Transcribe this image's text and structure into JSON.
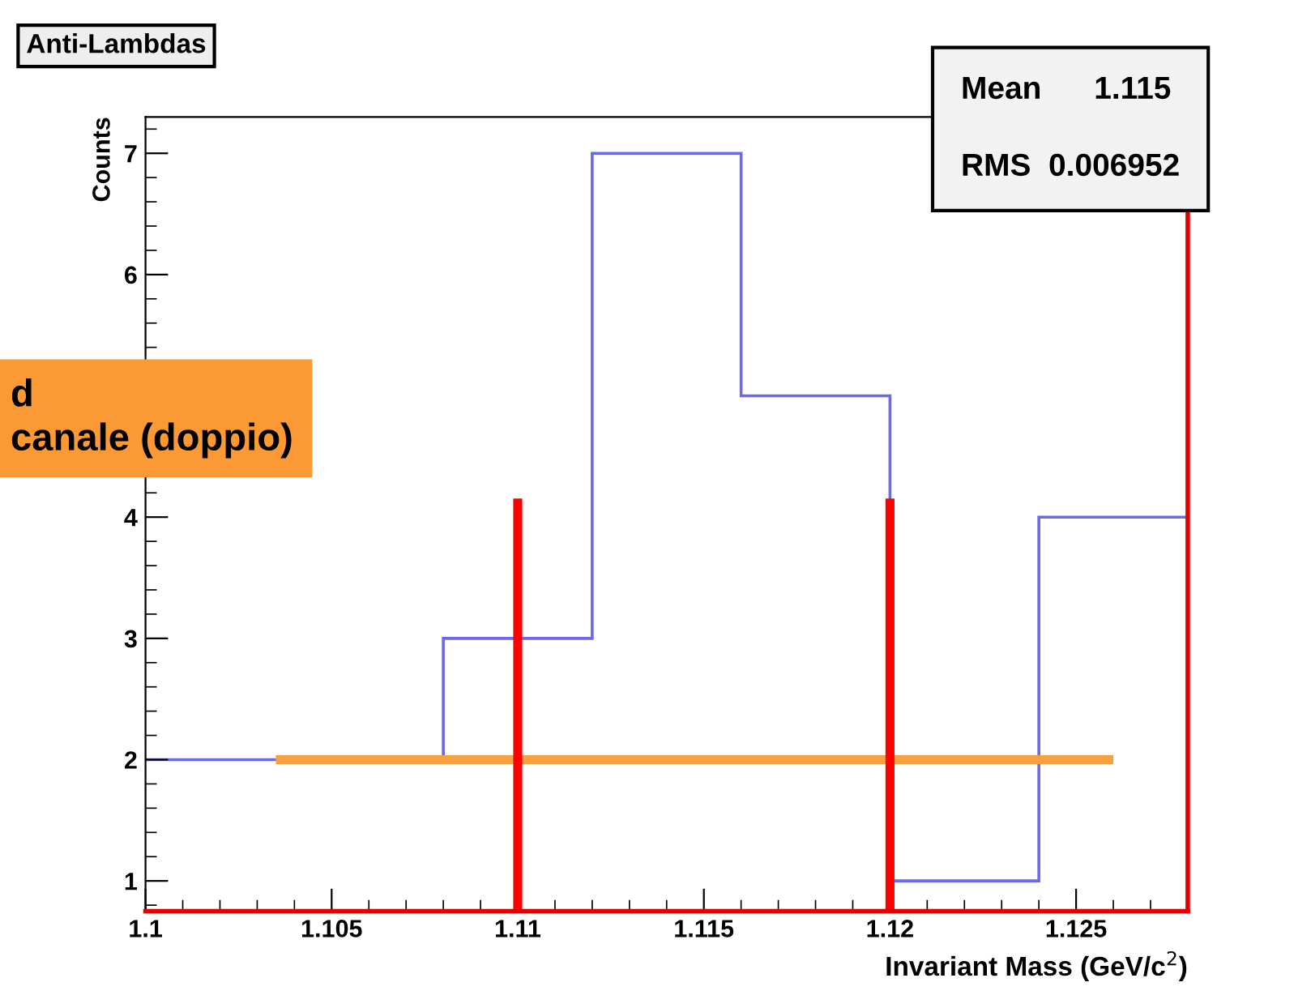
{
  "chart_data": {
    "type": "histogram",
    "title": "Anti-Lambdas",
    "xlabel": "Invariant Mass (GeV/c$^{2}$)",
    "ylabel": "Counts",
    "bins": [
      1.1,
      1.104,
      1.108,
      1.112,
      1.116,
      1.12,
      1.124,
      1.128
    ],
    "values": [
      2,
      2,
      3,
      7,
      5,
      1,
      4
    ],
    "color": "#6a6aea",
    "series": [
      {
        "type": "line",
        "x": [
          1.1035,
          1.126
        ],
        "values": [
          2,
          2
        ],
        "color": "#f7a040"
      }
    ],
    "ref_lines": [
      {
        "axis": "x",
        "value": 1.11,
        "color": "#ff0000"
      },
      {
        "axis": "x",
        "value": 1.12,
        "color": "#ff0000"
      }
    ],
    "xlim": [
      1.1,
      1.128
    ],
    "ylim": [
      0.75,
      7.3
    ],
    "xticks": [
      1.1,
      1.105,
      1.11,
      1.115,
      1.12,
      1.125
    ],
    "yticks": [
      1,
      2,
      3,
      4,
      {
        "value": 5,
        "label": null
      },
      6,
      7
    ],
    "annotations": [
      "Mean      1.115",
      "RMS  0.006952",
      "d\ncanale (doppio)"
    ],
    "grid": false
  }
}
